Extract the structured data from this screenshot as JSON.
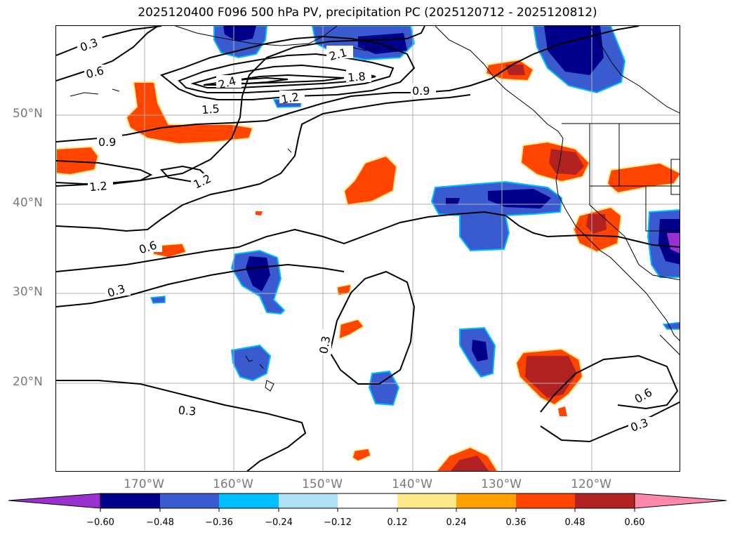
{
  "title": "2025120400 F096 500 hPa PV, precipitation PC (2025120712 - 2025120812)",
  "lat_labels": [
    "50°N",
    "40°N",
    "30°N",
    "20°N"
  ],
  "lon_labels": [
    "170°W",
    "160°W",
    "150°W",
    "140°W",
    "130°W",
    "120°W"
  ],
  "contour_labels": [
    "0.3",
    "0.6",
    "2.1",
    "2.4",
    "1.8",
    "1.2",
    "0.9",
    "1.5",
    "0.9",
    "1.2",
    "1.2",
    "0.6",
    "0.3",
    "0.3",
    "0.3",
    "0.6",
    "0.3"
  ],
  "colorbar": {
    "ticks": [
      "−0.60",
      "−0.48",
      "−0.36",
      "−0.24",
      "−0.12",
      "0.12",
      "0.24",
      "0.36",
      "0.48",
      "0.60"
    ],
    "colors": [
      "#9b30d0",
      "#00008b",
      "#3a5bd0",
      "#00bfff",
      "#b0e0f8",
      "#ffffff",
      "#ffe88a",
      "#ffa000",
      "#ff4500",
      "#b22222",
      "#ff88aa"
    ]
  }
}
